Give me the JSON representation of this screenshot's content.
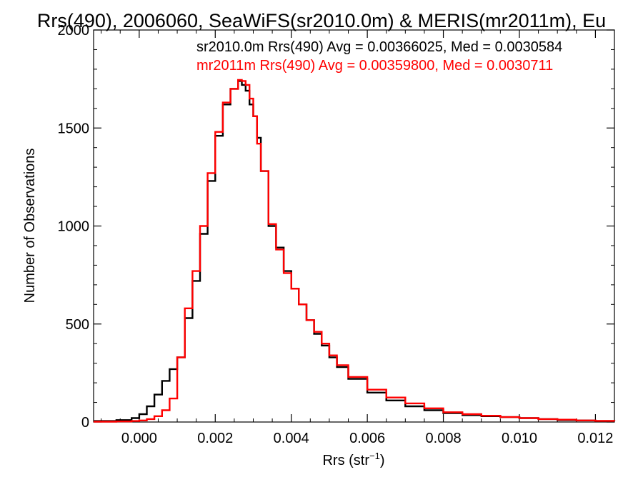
{
  "chart_data": {
    "type": "line",
    "title": "Rrs(490), 2006060, SeaWiFS(sr2010.0m) & MERIS(mr2011m), Eu",
    "xlabel": "Rrs (str",
    "xlabel_sup": "−1",
    "xlabel_close": ")",
    "ylabel": "Number of Observations",
    "xlim": [
      -0.0012,
      0.0125
    ],
    "ylim": [
      0,
      2000
    ],
    "x_ticks": [
      0.0,
      0.002,
      0.004,
      0.006,
      0.008,
      0.01,
      0.012
    ],
    "x_tick_labels": [
      "0.000",
      "0.002",
      "0.004",
      "0.006",
      "0.008",
      "0.010",
      "0.012"
    ],
    "y_ticks": [
      0,
      500,
      1000,
      1500,
      2000
    ],
    "y_tick_labels": [
      "0",
      "500",
      "1000",
      "1500",
      "2000"
    ],
    "grid": false,
    "annotations": [
      {
        "text": "sr2010.0m Rrs(490) Avg = 0.00366025, Med = 0.0030584",
        "color": "#000000"
      },
      {
        "text": "mr2011m Rrs(490) Avg = 0.00359800, Med = 0.0030711",
        "color": "#ff0000"
      }
    ],
    "series": [
      {
        "color": "#000000",
        "x": [
          -0.0012,
          -0.0006,
          -0.0002,
          0.0,
          0.0002,
          0.0004,
          0.0006,
          0.0008,
          0.001,
          0.0012,
          0.0014,
          0.0016,
          0.0018,
          0.002,
          0.0022,
          0.0024,
          0.0026,
          0.0027,
          0.0028,
          0.0029,
          0.003,
          0.0031,
          0.0032,
          0.0034,
          0.0036,
          0.0038,
          0.004,
          0.0042,
          0.0044,
          0.0046,
          0.0048,
          0.005,
          0.0052,
          0.0055,
          0.006,
          0.0065,
          0.007,
          0.0075,
          0.008,
          0.0085,
          0.009,
          0.0095,
          0.01,
          0.0105,
          0.011,
          0.0115,
          0.012,
          0.0125
        ],
        "y": [
          5,
          10,
          20,
          40,
          80,
          140,
          210,
          270,
          330,
          530,
          720,
          960,
          1230,
          1460,
          1620,
          1700,
          1740,
          1720,
          1690,
          1620,
          1560,
          1450,
          1280,
          1000,
          890,
          770,
          680,
          600,
          520,
          450,
          390,
          330,
          280,
          220,
          150,
          110,
          80,
          60,
          45,
          35,
          30,
          25,
          20,
          15,
          10,
          8,
          5,
          5
        ]
      },
      {
        "color": "#ff0000",
        "x": [
          -0.0012,
          -0.0006,
          -0.0002,
          0.0,
          0.0002,
          0.0004,
          0.0006,
          0.0008,
          0.001,
          0.0012,
          0.0014,
          0.0016,
          0.0018,
          0.002,
          0.0022,
          0.0024,
          0.0026,
          0.0027,
          0.0028,
          0.0029,
          0.003,
          0.0031,
          0.0032,
          0.0034,
          0.0036,
          0.0038,
          0.004,
          0.0042,
          0.0044,
          0.0046,
          0.0048,
          0.005,
          0.0052,
          0.0055,
          0.006,
          0.0065,
          0.007,
          0.0075,
          0.008,
          0.0085,
          0.009,
          0.0095,
          0.01,
          0.0105,
          0.011,
          0.0115,
          0.012,
          0.0125
        ],
        "y": [
          2,
          3,
          5,
          8,
          15,
          30,
          60,
          120,
          330,
          580,
          770,
          1000,
          1270,
          1480,
          1630,
          1700,
          1745,
          1740,
          1720,
          1650,
          1560,
          1420,
          1280,
          1010,
          880,
          760,
          680,
          600,
          520,
          460,
          400,
          340,
          290,
          230,
          165,
          125,
          95,
          70,
          50,
          40,
          32,
          25,
          20,
          15,
          12,
          8,
          6,
          5
        ]
      }
    ]
  }
}
